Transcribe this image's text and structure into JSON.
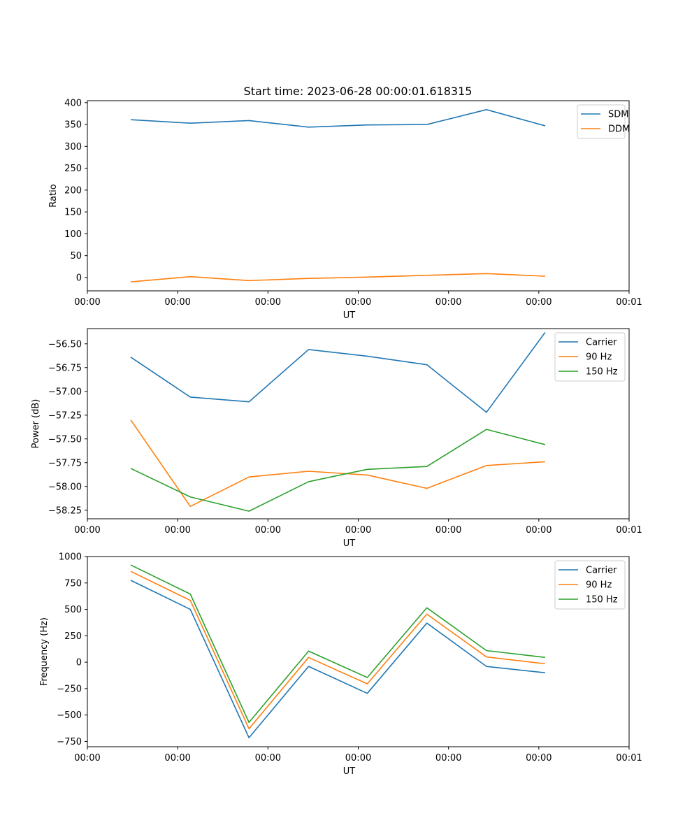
{
  "figure": {
    "title": "Start time: 2023-06-28 00:00:01.618315"
  },
  "chart_data": [
    {
      "type": "line",
      "title": "Start time: 2023-06-28 00:00:01.618315",
      "xlabel": "UT",
      "ylabel": "Ratio",
      "x_tick_labels": [
        "00:00",
        "00:00",
        "00:00",
        "00:00",
        "00:00",
        "00:00",
        "00:01"
      ],
      "y_ticks": [
        0,
        50,
        100,
        150,
        200,
        250,
        300,
        350,
        400
      ],
      "y_tick_labels": [
        "0",
        "50",
        "100",
        "150",
        "200",
        "250",
        "300",
        "350",
        "400"
      ],
      "xlim": [
        0.0,
        6.0
      ],
      "ylim": [
        -30.5,
        404.5
      ],
      "x": [
        0.48,
        1.14,
        1.79,
        2.45,
        3.1,
        3.76,
        4.42,
        5.07
      ],
      "series": [
        {
          "name": "SDM",
          "color": "#1f77b4",
          "values": [
            361,
            353,
            359,
            344,
            349,
            350,
            384,
            347
          ]
        },
        {
          "name": "DDM",
          "color": "#ff7f0e",
          "values": [
            -10,
            2,
            -7,
            -2,
            1,
            5,
            9,
            3
          ]
        }
      ],
      "legend": "top-right",
      "grid": false
    },
    {
      "type": "line",
      "xlabel": "UT",
      "ylabel": "Power (dB)",
      "x_tick_labels": [
        "00:00",
        "00:00",
        "00:00",
        "00:00",
        "00:00",
        "00:00",
        "00:01"
      ],
      "y_ticks": [
        -58.25,
        -58.0,
        -57.75,
        -57.5,
        -57.25,
        -57.0,
        -56.75,
        -56.5
      ],
      "y_tick_labels": [
        "−58.25",
        "−58.00",
        "−57.75",
        "−57.50",
        "−57.25",
        "−57.00",
        "−56.75",
        "−56.50"
      ],
      "xlim": [
        0.0,
        6.0
      ],
      "ylim": [
        -58.34,
        -56.34
      ],
      "x": [
        0.48,
        1.14,
        1.79,
        2.45,
        3.1,
        3.76,
        4.42,
        5.07
      ],
      "series": [
        {
          "name": "Carrier",
          "color": "#1f77b4",
          "values": [
            -56.64,
            -57.06,
            -57.11,
            -56.56,
            -56.63,
            -56.72,
            -57.22,
            -56.38
          ]
        },
        {
          "name": "90 Hz",
          "color": "#ff7f0e",
          "values": [
            -57.3,
            -58.21,
            -57.9,
            -57.84,
            -57.88,
            -58.02,
            -57.78,
            -57.74
          ]
        },
        {
          "name": "150 Hz",
          "color": "#2ca02c",
          "values": [
            -57.81,
            -58.11,
            -58.26,
            -57.95,
            -57.82,
            -57.79,
            -57.4,
            -57.56
          ]
        }
      ],
      "legend": "top-right",
      "grid": false
    },
    {
      "type": "line",
      "xlabel": "UT",
      "ylabel": "Frequency (Hz)",
      "x_tick_labels": [
        "00:00",
        "00:00",
        "00:00",
        "00:00",
        "00:00",
        "00:00",
        "00:01"
      ],
      "y_ticks": [
        -750,
        -500,
        -250,
        0,
        250,
        500,
        750,
        1000
      ],
      "y_tick_labels": [
        "−750",
        "−500",
        "−250",
        "0",
        "250",
        "500",
        "750",
        "1000"
      ],
      "xlim": [
        0.0,
        6.0
      ],
      "ylim": [
        -800,
        1000
      ],
      "x": [
        0.48,
        1.14,
        1.79,
        2.45,
        3.1,
        3.76,
        4.42,
        5.07
      ],
      "series": [
        {
          "name": "Carrier",
          "color": "#1f77b4",
          "values": [
            775,
            500,
            -715,
            -40,
            -295,
            370,
            -40,
            -100
          ]
        },
        {
          "name": "90 Hz",
          "color": "#ff7f0e",
          "values": [
            860,
            585,
            -630,
            45,
            -205,
            455,
            50,
            -15
          ]
        },
        {
          "name": "150 Hz",
          "color": "#2ca02c",
          "values": [
            920,
            645,
            -570,
            105,
            -145,
            515,
            110,
            45
          ]
        }
      ],
      "legend": "top-right",
      "grid": false
    }
  ]
}
